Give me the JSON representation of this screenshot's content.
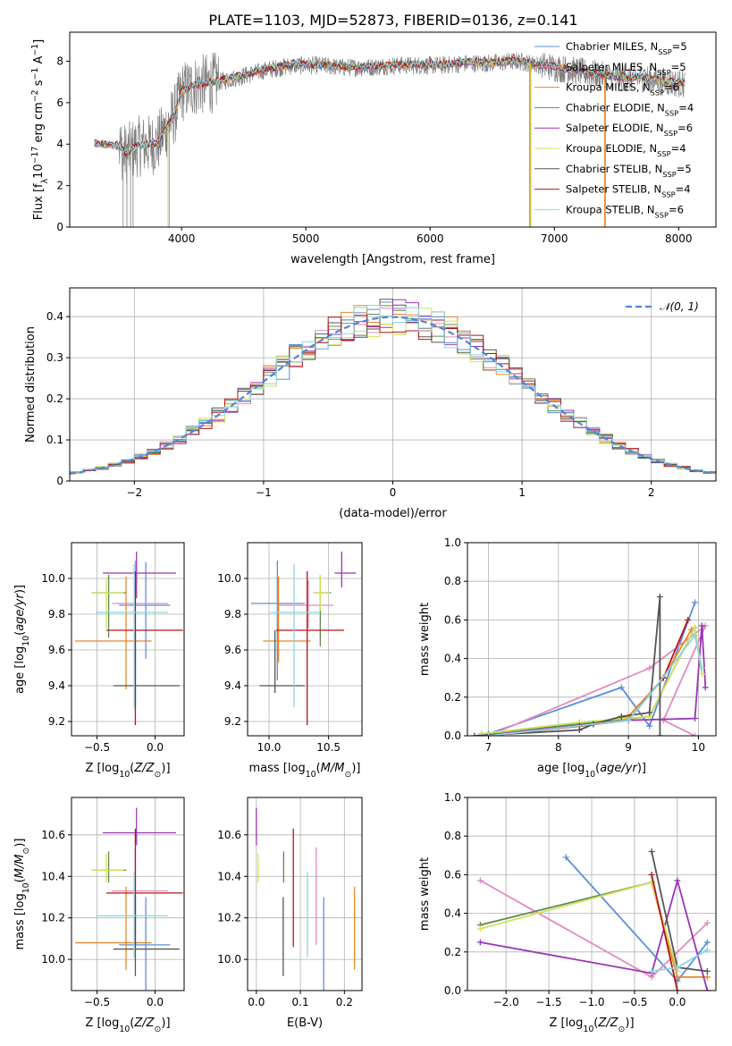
{
  "figure": {
    "title": "PLATE=1103, MJD=52873, FIBERID=0136, z=0.141"
  },
  "colors": {
    "models": [
      "#5b8fd9",
      "#e38abf",
      "#e8882a",
      "#5b8a52",
      "#9a35b5",
      "#d5e05a",
      "#555555",
      "#b31616",
      "#8ad6df"
    ],
    "data": "#7f7f7f",
    "normal": "#4f86d9"
  },
  "legend": {
    "models": [
      {
        "base": "Chabrier MILES, N",
        "sub": "SSP",
        "tail": "=5"
      },
      {
        "base": "Salpeter MILES, N",
        "sub": "SSP",
        "tail": "=5"
      },
      {
        "base": "Kroupa MILES, N",
        "sub": "SSP",
        "tail": "=6"
      },
      {
        "base": "Chabrier ELODIE, N",
        "sub": "SSP",
        "tail": "=4"
      },
      {
        "base": "Salpeter ELODIE, N",
        "sub": "SSP",
        "tail": "=6"
      },
      {
        "base": "Kroupa ELODIE, N",
        "sub": "SSP",
        "tail": "=4"
      },
      {
        "base": "Chabrier STELIB, N",
        "sub": "SSP",
        "tail": "=5"
      },
      {
        "base": "Salpeter STELIB, N",
        "sub": "SSP",
        "tail": "=4"
      },
      {
        "base": "Kroupa STELIB, N",
        "sub": "SSP",
        "tail": "=6"
      }
    ],
    "normal": "𝒩(0, 1)"
  },
  "chart_data": [
    {
      "id": "spectrum",
      "type": "line",
      "xlabel": "wavelength [Angstrom, rest frame]",
      "ylabel": "Flux [f_λ 10^-17 erg cm^-2 s^-1 A^-1]",
      "xlim": [
        3100,
        8300
      ],
      "ylim": [
        0,
        9.4
      ],
      "xticks": [
        4000,
        5000,
        6000,
        7000,
        8000
      ],
      "yticks": [
        0,
        2,
        4,
        6,
        8
      ],
      "continuum": {
        "x": [
          3300,
          3500,
          3550,
          3650,
          3800,
          3950,
          4000,
          4100,
          4300,
          4500,
          4700,
          4900,
          5100,
          5300,
          5500,
          5700,
          5900,
          6100,
          6300,
          6500,
          6700,
          6900,
          7100,
          7300,
          7500,
          7700,
          7900,
          8050
        ],
        "y": [
          4.0,
          3.9,
          3.5,
          3.9,
          4.0,
          5.5,
          6.5,
          6.8,
          7.0,
          7.3,
          7.6,
          7.8,
          7.8,
          7.7,
          7.7,
          7.8,
          7.8,
          7.8,
          7.9,
          7.9,
          8.0,
          7.8,
          7.6,
          7.4,
          7.2,
          7.2,
          7.0,
          6.9
        ]
      },
      "spikes_x": [
        3530,
        3560,
        3590,
        3610,
        3900,
        6800,
        7410
      ]
    },
    {
      "id": "residuals",
      "type": "histogram",
      "xlabel": "(data-model)/error",
      "ylabel": "Normed distribution",
      "xlim": [
        -2.5,
        2.5
      ],
      "ylim": [
        0,
        0.47
      ],
      "xticks": [
        -2,
        -1,
        0,
        1,
        2
      ],
      "yticks": [
        0,
        0.1,
        0.2,
        0.3,
        0.4
      ],
      "bin_width": 0.1,
      "bin_start": -2.5,
      "normal_curve": {
        "mu": 0,
        "sigma": 1,
        "label": "𝒩(0, 1)"
      }
    },
    {
      "id": "age-vs-Z",
      "type": "errorbar",
      "xlabel": "Z [log10(Z/Z⊙)]",
      "ylabel": "age [log10(age/yr)]",
      "xlim": [
        -0.72,
        0.25
      ],
      "ylim": [
        9.12,
        10.2
      ],
      "xticks": [
        -0.5,
        0.0
      ],
      "yticks": [
        9.2,
        9.4,
        9.6,
        9.8,
        10.0
      ],
      "points": [
        {
          "x": -0.08,
          "xerr": [
            0.23,
            0.21
          ],
          "y": 9.85,
          "yerr": [
            0.3,
            0.24
          ]
        },
        {
          "x": -0.17,
          "xerr": [
            0.2,
            0.28
          ],
          "y": 9.86,
          "yerr": [
            0.31,
            0.24
          ]
        },
        {
          "x": -0.25,
          "xerr": [
            0.44,
            0.22
          ],
          "y": 9.65,
          "yerr": [
            0.27,
            0.36
          ]
        },
        {
          "x": -0.4,
          "xerr": [
            0.14,
            0.15
          ],
          "y": 9.92,
          "yerr": [
            0.25,
            0.1
          ]
        },
        {
          "x": -0.16,
          "xerr": [
            0.29,
            0.34
          ],
          "y": 10.03,
          "yerr": [
            0.14,
            0.12
          ]
        },
        {
          "x": -0.42,
          "xerr": [
            0.13,
            0.15
          ],
          "y": 9.92,
          "yerr": [
            0.2,
            0.08
          ]
        },
        {
          "x": -0.17,
          "xerr": [
            0.19,
            0.38
          ],
          "y": 9.4,
          "yerr": [
            0.13,
            0.31
          ]
        },
        {
          "x": -0.17,
          "xerr": [
            0.25,
            0.41
          ],
          "y": 9.71,
          "yerr": [
            0.53,
            0.33
          ]
        },
        {
          "x": -0.18,
          "xerr": [
            0.33,
            0.29
          ],
          "y": 9.81,
          "yerr": [
            0.53,
            0.27
          ]
        }
      ]
    },
    {
      "id": "age-vs-mass",
      "type": "errorbar",
      "xlabel": "mass [log10(M/M⊙)]",
      "ylabel": "",
      "xlim": [
        9.82,
        10.78
      ],
      "ylim": [
        9.12,
        10.2
      ],
      "xticks": [
        10.0,
        10.5
      ],
      "yticks": [
        9.2,
        9.4,
        9.6,
        9.8,
        10.0
      ],
      "points": [
        {
          "x": 10.07,
          "xerr": [
            0.22,
            0.23
          ],
          "y": 9.86,
          "yerr": [
            0.43,
            0.24
          ]
        },
        {
          "x": 10.33,
          "xerr": [
            0.26,
            0.21
          ],
          "y": 9.85,
          "yerr": [
            0.13,
            0.14
          ]
        },
        {
          "x": 10.08,
          "xerr": [
            0.13,
            0.27
          ],
          "y": 9.65,
          "yerr": [
            0.12,
            0.36
          ]
        },
        {
          "x": 10.43,
          "xerr": [
            0.06,
            0.09
          ],
          "y": 9.92,
          "yerr": [
            0.3,
            0.1
          ]
        },
        {
          "x": 10.61,
          "xerr": [
            0.06,
            0.12
          ],
          "y": 10.03,
          "yerr": [
            0.08,
            0.12
          ]
        },
        {
          "x": 10.43,
          "xerr": [
            0.06,
            0.08
          ],
          "y": 9.92,
          "yerr": [
            0.1,
            0.1
          ]
        },
        {
          "x": 10.05,
          "xerr": [
            0.13,
            0.25
          ],
          "y": 9.4,
          "yerr": [
            0.04,
            0.31
          ]
        },
        {
          "x": 10.32,
          "xerr": [
            0.26,
            0.31
          ],
          "y": 9.71,
          "yerr": [
            0.53,
            0.33
          ]
        },
        {
          "x": 10.21,
          "xerr": [
            0.2,
            0.21
          ],
          "y": 9.81,
          "yerr": [
            0.53,
            0.27
          ]
        }
      ]
    },
    {
      "id": "weight-vs-age",
      "type": "line",
      "xlabel": "age [log10(age/yr)]",
      "ylabel": "mass weight",
      "xlim": [
        6.7,
        10.25
      ],
      "ylim": [
        0,
        1.0
      ],
      "xticks": [
        7,
        8,
        9,
        10
      ],
      "yticks": [
        0.0,
        0.2,
        0.4,
        0.6,
        0.8,
        1.0
      ],
      "series": [
        {
          "x": [
            7.0,
            8.9,
            9.3,
            9.95
          ],
          "y": [
            0.01,
            0.25,
            0.05,
            0.69
          ]
        },
        {
          "x": [
            7.0,
            9.3,
            10.1,
            9.5,
            9.95
          ],
          "y": [
            0.0,
            0.35,
            0.57,
            0.08,
            0.0
          ]
        },
        {
          "x": [
            7.0,
            8.5,
            9.0,
            9.5,
            9.9
          ],
          "y": [
            0.0,
            0.06,
            0.1,
            0.3,
            0.55
          ]
        },
        {
          "x": [
            6.9,
            8.3,
            9.3,
            9.95
          ],
          "y": [
            0.01,
            0.06,
            0.1,
            0.56
          ]
        },
        {
          "x": [
            6.9,
            9.0,
            9.95,
            10.05,
            10.1
          ],
          "y": [
            0.0,
            0.08,
            0.09,
            0.57,
            0.25
          ]
        },
        {
          "x": [
            6.9,
            8.3,
            9.3,
            9.95,
            10.05
          ],
          "y": [
            0.01,
            0.07,
            0.1,
            0.56,
            0.32
          ]
        },
        {
          "x": [
            6.8,
            8.3,
            8.5,
            8.9,
            9.3,
            9.45,
            9.45
          ],
          "y": [
            0.0,
            0.03,
            0.06,
            0.1,
            0.12,
            0.72,
            0.0
          ]
        },
        {
          "x": [
            7.0,
            8.3,
            9.0,
            9.5,
            9.85
          ],
          "y": [
            0.0,
            0.05,
            0.08,
            0.3,
            0.6
          ]
        },
        {
          "x": [
            7.0,
            9.0,
            9.3,
            9.95,
            10.05
          ],
          "y": [
            0.0,
            0.08,
            0.21,
            0.52,
            0.35
          ]
        }
      ]
    },
    {
      "id": "mass-vs-Z",
      "type": "errorbar",
      "xlabel": "Z [log10(Z/Z⊙)]",
      "ylabel": "mass [log10(M/M⊙)]",
      "xlim": [
        -0.72,
        0.25
      ],
      "ylim": [
        9.85,
        10.78
      ],
      "xticks": [
        -0.5,
        0.0
      ],
      "yticks": [
        10.0,
        10.2,
        10.4,
        10.6
      ],
      "points": [
        {
          "x": -0.08,
          "xerr": [
            0.23,
            0.21
          ],
          "y": 10.07,
          "yerr": [
            0.22,
            0.23
          ]
        },
        {
          "x": -0.17,
          "xerr": [
            0.2,
            0.28
          ],
          "y": 10.33,
          "yerr": [
            0.26,
            0.21
          ]
        },
        {
          "x": -0.25,
          "xerr": [
            0.44,
            0.22
          ],
          "y": 10.08,
          "yerr": [
            0.13,
            0.27
          ]
        },
        {
          "x": -0.4,
          "xerr": [
            0.14,
            0.15
          ],
          "y": 10.43,
          "yerr": [
            0.06,
            0.09
          ]
        },
        {
          "x": -0.16,
          "xerr": [
            0.29,
            0.34
          ],
          "y": 10.61,
          "yerr": [
            0.06,
            0.12
          ]
        },
        {
          "x": -0.42,
          "xerr": [
            0.13,
            0.15
          ],
          "y": 10.43,
          "yerr": [
            0.06,
            0.08
          ]
        },
        {
          "x": -0.17,
          "xerr": [
            0.19,
            0.38
          ],
          "y": 10.05,
          "yerr": [
            0.13,
            0.25
          ]
        },
        {
          "x": -0.17,
          "xerr": [
            0.25,
            0.41
          ],
          "y": 10.32,
          "yerr": [
            0.26,
            0.31
          ]
        },
        {
          "x": -0.18,
          "xerr": [
            0.33,
            0.29
          ],
          "y": 10.21,
          "yerr": [
            0.2,
            0.21
          ]
        }
      ]
    },
    {
      "id": "mass-vs-EBV",
      "type": "errorbar",
      "xlabel": "E(B-V)",
      "ylabel": "",
      "xlim": [
        -0.02,
        0.24
      ],
      "ylim": [
        9.85,
        10.78
      ],
      "xticks": [
        0.0,
        0.1,
        0.2
      ],
      "yticks": [
        10.0,
        10.2,
        10.4,
        10.6
      ],
      "points": [
        {
          "x": 0.153,
          "y": 10.07,
          "yerr": [
            0.22,
            0.23
          ]
        },
        {
          "x": 0.136,
          "y": 10.33,
          "yerr": [
            0.26,
            0.21
          ]
        },
        {
          "x": 0.223,
          "y": 10.08,
          "yerr": [
            0.13,
            0.27
          ]
        },
        {
          "x": 0.062,
          "y": 10.43,
          "yerr": [
            0.06,
            0.09
          ]
        },
        {
          "x": 0.0,
          "y": 10.61,
          "yerr": [
            0.06,
            0.12
          ]
        },
        {
          "x": 0.004,
          "y": 10.43,
          "yerr": [
            0.06,
            0.08
          ]
        },
        {
          "x": 0.061,
          "y": 10.05,
          "yerr": [
            0.13,
            0.25
          ]
        },
        {
          "x": 0.084,
          "y": 10.32,
          "yerr": [
            0.26,
            0.31
          ]
        },
        {
          "x": 0.116,
          "y": 10.21,
          "yerr": [
            0.2,
            0.21
          ]
        }
      ]
    },
    {
      "id": "weight-vs-Z",
      "type": "line",
      "xlabel": "Z [log10(Z/Z⊙)]",
      "ylabel": "mass weight",
      "xlim": [
        -2.45,
        0.45
      ],
      "ylim": [
        0,
        1.0
      ],
      "xticks": [
        -2.0,
        -1.5,
        -1.0,
        -0.5,
        0.0
      ],
      "yticks": [
        0.0,
        0.2,
        0.4,
        0.6,
        0.8,
        1.0
      ],
      "series": [
        {
          "x": [
            -1.3,
            0.0,
            0.35
          ],
          "y": [
            0.69,
            0.05,
            0.25
          ]
        },
        {
          "x": [
            -2.3,
            -0.3,
            0.35
          ],
          "y": [
            0.57,
            0.07,
            0.35
          ]
        },
        {
          "x": [
            -0.3,
            0.0,
            0.35
          ],
          "y": [
            0.56,
            0.07,
            0.07
          ]
        },
        {
          "x": [
            -2.3,
            -0.3,
            0.0
          ],
          "y": [
            0.34,
            0.56,
            0.1
          ]
        },
        {
          "x": [
            -2.3,
            -0.3,
            0.0,
            0.35
          ],
          "y": [
            0.25,
            0.09,
            0.57,
            0.0
          ]
        },
        {
          "x": [
            -2.3,
            -0.3,
            0.0
          ],
          "y": [
            0.32,
            0.56,
            0.1
          ]
        },
        {
          "x": [
            -0.3,
            0.0,
            0.35
          ],
          "y": [
            0.72,
            0.12,
            0.1
          ]
        },
        {
          "x": [
            -0.3,
            0.0
          ],
          "y": [
            0.6,
            0.0
          ]
        },
        {
          "x": [
            -0.3,
            0.0,
            0.35
          ],
          "y": [
            0.1,
            0.12,
            0.21
          ]
        }
      ]
    }
  ]
}
